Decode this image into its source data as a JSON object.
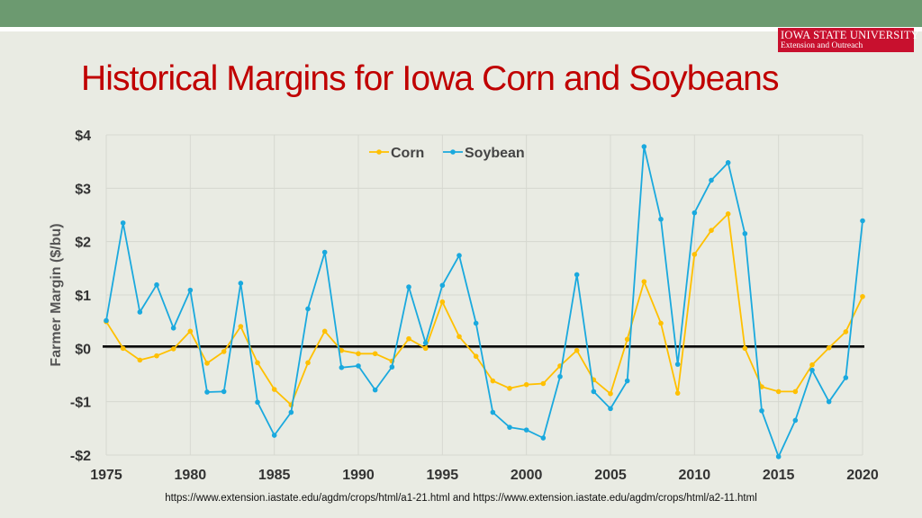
{
  "header": {
    "bar_color": "#6c9a70"
  },
  "logo": {
    "line1": "IOWA STATE UNIVERSITY",
    "line2": "Extension and Outreach"
  },
  "title": "Historical Margins for Iowa Corn and Soybeans",
  "source": "https://www.extension.iastate.edu/agdm/crops/html/a1-21.html and https://www.extension.iastate.edu/agdm/crops/html/a2-11.html",
  "chart_data": {
    "type": "line",
    "title": "",
    "xlabel": "",
    "ylabel": "Farmer Margin ($/bu)",
    "xlim": [
      1975,
      2020
    ],
    "ylim": [
      -2,
      4
    ],
    "x_ticks": [
      1975,
      1980,
      1985,
      1990,
      1995,
      2000,
      2005,
      2010,
      2015,
      2020
    ],
    "y_ticks": [
      {
        "value": 4,
        "label": "$4"
      },
      {
        "value": 3,
        "label": "$3"
      },
      {
        "value": 2,
        "label": "$2"
      },
      {
        "value": 1,
        "label": "$1"
      },
      {
        "value": 0,
        "label": "$0"
      },
      {
        "value": -1,
        "label": "-$1"
      },
      {
        "value": -2,
        "label": "-$2"
      }
    ],
    "grid": true,
    "legend": "top-center",
    "zero_line": 0,
    "x": [
      1975,
      1976,
      1977,
      1978,
      1979,
      1980,
      1981,
      1982,
      1983,
      1984,
      1985,
      1986,
      1987,
      1988,
      1989,
      1990,
      1991,
      1992,
      1993,
      1994,
      1995,
      1996,
      1997,
      1998,
      1999,
      2000,
      2001,
      2002,
      2003,
      2004,
      2005,
      2006,
      2007,
      2008,
      2009,
      2010,
      2011,
      2012,
      2013,
      2014,
      2015,
      2016,
      2017,
      2018,
      2019,
      2020
    ],
    "series": [
      {
        "name": "Corn",
        "color": "#ffc000",
        "values": [
          0.5,
          0.0,
          -0.22,
          -0.14,
          -0.01,
          0.32,
          -0.28,
          -0.06,
          0.41,
          -0.27,
          -0.77,
          -1.06,
          -0.27,
          0.32,
          -0.04,
          -0.1,
          -0.1,
          -0.24,
          0.18,
          0.0,
          0.87,
          0.22,
          -0.15,
          -0.61,
          -0.75,
          -0.68,
          -0.66,
          -0.33,
          -0.04,
          -0.59,
          -0.85,
          0.17,
          1.25,
          0.47,
          -0.84,
          1.76,
          2.21,
          2.52,
          0.0,
          -0.72,
          -0.81,
          -0.81,
          -0.31,
          0.01,
          0.31,
          0.97
        ]
      },
      {
        "name": "Soybean",
        "color": "#1aa9de",
        "values": [
          0.52,
          2.35,
          0.68,
          1.19,
          0.38,
          1.09,
          -0.82,
          -0.81,
          1.22,
          -1.01,
          -1.63,
          -1.2,
          0.74,
          1.8,
          -0.36,
          -0.33,
          -0.78,
          -0.35,
          1.15,
          0.1,
          1.18,
          1.74,
          0.47,
          -1.2,
          -1.48,
          -1.53,
          -1.68,
          -0.53,
          1.38,
          -0.81,
          -1.13,
          -0.61,
          3.78,
          2.42,
          -0.3,
          2.54,
          3.15,
          3.48,
          2.15,
          -1.17,
          -2.03,
          -1.35,
          -0.41,
          -1.0,
          -0.55,
          2.39
        ]
      }
    ]
  }
}
